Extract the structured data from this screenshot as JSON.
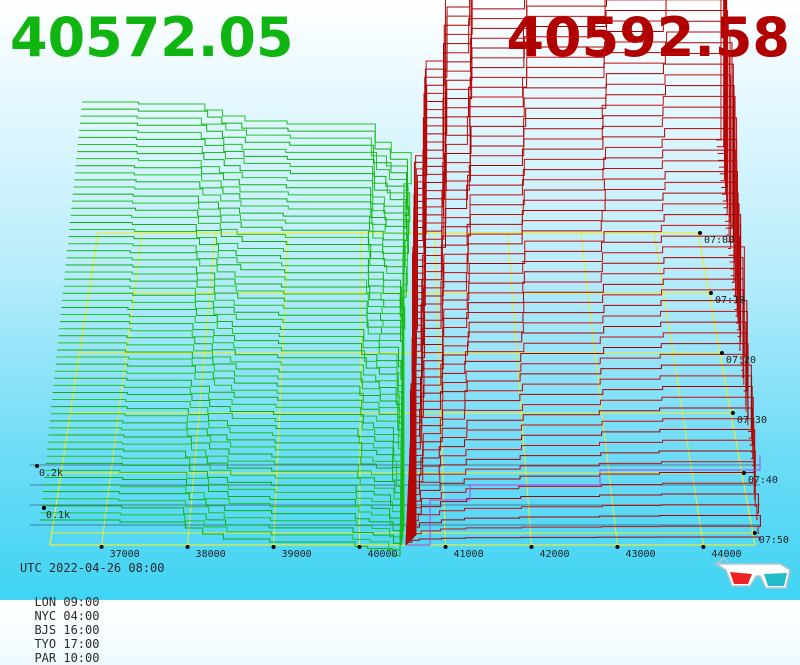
{
  "header": {
    "bid_price": "40572.05",
    "ask_price": "40592.58",
    "bid_color": "#11b511",
    "ask_color": "#b00000"
  },
  "footer": {
    "utc": "UTC 2022-04-26 08:00",
    "zones": [
      "LON 09:00",
      "NYC 04:00",
      "BJS 16:00",
      "TYO 17:00",
      "PAR 10:00"
    ]
  },
  "icons": {
    "glasses": "3d-glasses-icon"
  },
  "chart_data": {
    "type": "area",
    "subtype": "3d-order-book-depth",
    "title": "",
    "xlabel": "",
    "ylabel": "",
    "price_ticks": [
      "37000",
      "38000",
      "39000",
      "40000",
      "41000",
      "42000",
      "43000",
      "44000"
    ],
    "price_range": [
      36400,
      44600
    ],
    "mid_price": 40582,
    "depth_ticks": [
      "0.1k",
      "0.2k"
    ],
    "depth_unit": "k",
    "time_ticks": [
      "07:00",
      "07:10",
      "07:20",
      "07:30",
      "07:40",
      "07:50"
    ],
    "snapshots": 60,
    "series": [
      {
        "name": "",
        "side": "bid",
        "color": "#11bb11"
      },
      {
        "name": "",
        "side": "ask",
        "color": "#b00000"
      }
    ],
    "grid_color": "#e8ec3a",
    "grid": true
  }
}
